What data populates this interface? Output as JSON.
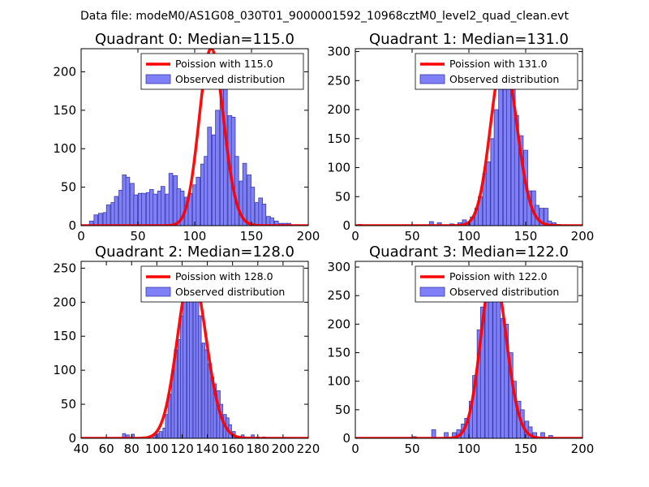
{
  "figure": {
    "suptitle": "Data file: modeM0/AS1G08_030T01_9000001592_10968cztM0_level2_quad_clean.evt"
  },
  "chart_data": [
    {
      "type": "bar",
      "title": "Quadrant 0: Median=115.0",
      "xlim": [
        0,
        200
      ],
      "ylim": [
        0,
        230
      ],
      "xticks": [
        0,
        50,
        100,
        150,
        200
      ],
      "yticks": [
        0,
        50,
        100,
        150,
        200
      ],
      "legend": {
        "placement": "top-right",
        "entries": [
          "Poission with 115.0",
          "Observed distribution"
        ]
      },
      "bar_width": 3.4,
      "bars": {
        "x": [
          9,
          13,
          17,
          21,
          24,
          28,
          31,
          35,
          38,
          41,
          45,
          48,
          52,
          55,
          59,
          62,
          65,
          69,
          72,
          76,
          79,
          83,
          86,
          89,
          93,
          96,
          100,
          103,
          107,
          110,
          113,
          117,
          120,
          124,
          127,
          131,
          134,
          137,
          141,
          144,
          148,
          151,
          155,
          158,
          161,
          165,
          168,
          172,
          176,
          180,
          183
        ],
        "values": [
          6,
          14,
          16,
          17,
          27,
          30,
          38,
          46,
          66,
          63,
          55,
          40,
          42,
          42,
          43,
          47,
          41,
          45,
          51,
          41,
          68,
          65,
          48,
          45,
          37,
          42,
          53,
          63,
          80,
          90,
          128,
          118,
          150,
          219,
          180,
          143,
          141,
          90,
          58,
          81,
          66,
          50,
          30,
          36,
          28,
          12,
          10,
          6,
          3,
          3,
          3
        ]
      },
      "poisson": {
        "mean": 115.0,
        "scale": 230
      }
    },
    {
      "type": "bar",
      "title": "Quadrant 1: Median=131.0",
      "xlim": [
        0,
        200
      ],
      "ylim": [
        0,
        305
      ],
      "xticks": [
        0,
        50,
        100,
        150,
        200
      ],
      "yticks": [
        0,
        50,
        100,
        150,
        200,
        250,
        300
      ],
      "legend": {
        "placement": "top-right",
        "entries": [
          "Poission with 131.0",
          "Observed distribution"
        ]
      },
      "bar_width": 3.6,
      "bars": {
        "x": [
          4,
          54,
          67,
          74,
          85,
          92,
          96,
          99,
          103,
          107,
          110,
          114,
          117,
          121,
          124,
          128,
          132,
          135,
          139,
          142,
          146,
          150,
          153,
          157,
          160,
          164,
          168,
          171,
          175,
          179
        ],
        "values": [
          2,
          1,
          7,
          5,
          3,
          5,
          10,
          5,
          15,
          30,
          50,
          90,
          110,
          150,
          200,
          280,
          280,
          280,
          240,
          190,
          155,
          130,
          60,
          60,
          35,
          30,
          30,
          8,
          5,
          2
        ]
      },
      "poisson": {
        "mean": 131.0,
        "scale": 290
      }
    },
    {
      "type": "bar",
      "title": "Quadrant 2: Median=128.0",
      "xlim": [
        40,
        220
      ],
      "ylim": [
        0,
        260
      ],
      "xticks": [
        40,
        60,
        80,
        100,
        120,
        140,
        160,
        180,
        200,
        220
      ],
      "yticks": [
        0,
        50,
        100,
        150,
        200,
        250
      ],
      "legend": {
        "placement": "top-right",
        "entries": [
          "Poission with 128.0",
          "Observed distribution"
        ]
      },
      "bar_width": 2.4,
      "bars": {
        "x": [
          61,
          74,
          77,
          81,
          89,
          93,
          98,
          100,
          103,
          106,
          108,
          110,
          113,
          115,
          118,
          120,
          122,
          125,
          127,
          130,
          132,
          134,
          137,
          139,
          142,
          144,
          146,
          149,
          151,
          154,
          156,
          158,
          161,
          163,
          166,
          168,
          171,
          174,
          176,
          180,
          185,
          188,
          192,
          197,
          201,
          205
        ],
        "values": [
          1,
          7,
          5,
          6,
          2,
          1,
          4,
          7,
          10,
          15,
          35,
          65,
          100,
          130,
          145,
          180,
          230,
          250,
          245,
          230,
          210,
          180,
          140,
          130,
          110,
          90,
          80,
          70,
          50,
          35,
          30,
          20,
          10,
          3,
          3,
          5,
          2,
          2,
          5,
          2,
          2,
          1,
          1,
          1,
          1,
          1
        ]
      },
      "poisson": {
        "mean": 128.0,
        "scale": 245
      }
    },
    {
      "type": "bar",
      "title": "Quadrant 3: Median=122.0",
      "xlim": [
        0,
        200
      ],
      "ylim": [
        0,
        310
      ],
      "xticks": [
        0,
        50,
        100,
        150,
        200
      ],
      "yticks": [
        0,
        50,
        100,
        150,
        200,
        250,
        300
      ],
      "legend": {
        "placement": "top-right",
        "entries": [
          "Poission with 122.0",
          "Observed distribution"
        ]
      },
      "bar_width": 3.5,
      "bars": {
        "x": [
          52,
          69,
          80,
          87,
          91,
          95,
          98,
          102,
          105,
          109,
          112,
          116,
          119,
          123,
          126,
          130,
          133,
          137,
          140,
          144,
          147,
          151,
          154,
          158,
          165,
          172
        ],
        "values": [
          3,
          15,
          10,
          10,
          15,
          25,
          35,
          65,
          110,
          190,
          230,
          300,
          290,
          300,
          280,
          210,
          200,
          150,
          100,
          65,
          50,
          30,
          20,
          10,
          10,
          5
        ]
      },
      "poisson": {
        "mean": 122.0,
        "scale": 295
      }
    }
  ],
  "colors": {
    "bar_fill": "#7f7ff7",
    "bar_edge": "#3a3aa8",
    "poisson_line": "#ff0000"
  }
}
